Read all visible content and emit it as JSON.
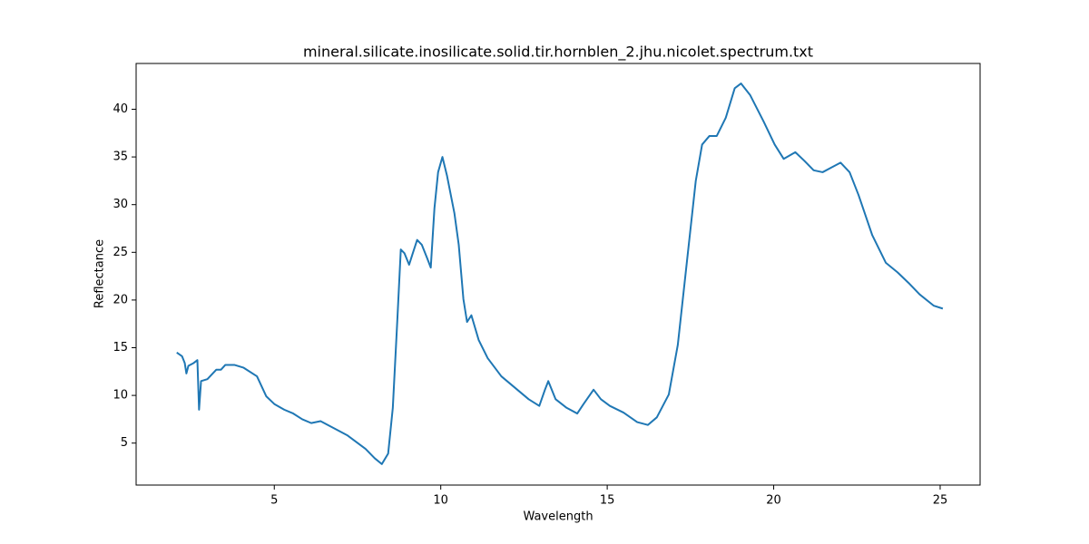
{
  "chart_data": {
    "type": "line",
    "title": "mineral.silicate.inosilicate.solid.tir.hornblen_2.jhu.nicolet.spectrum.txt",
    "x_label": "Wavelength",
    "y_label": "Reflectance",
    "color": "#1f77b4",
    "x": [
      2.07,
      2.23,
      2.31,
      2.36,
      2.42,
      2.58,
      2.69,
      2.74,
      2.8,
      2.99,
      3.26,
      3.4,
      3.53,
      3.8,
      4.08,
      4.48,
      4.76,
      5.0,
      5.3,
      5.57,
      5.84,
      6.11,
      6.39,
      6.66,
      7.2,
      7.74,
      8.02,
      8.23,
      8.42,
      8.56,
      8.7,
      8.8,
      8.91,
      9.05,
      9.16,
      9.29,
      9.43,
      9.59,
      9.7,
      9.81,
      9.92,
      10.05,
      10.19,
      10.41,
      10.54,
      10.68,
      10.79,
      10.92,
      11.14,
      11.41,
      11.82,
      12.23,
      12.64,
      12.96,
      13.13,
      13.23,
      13.45,
      13.78,
      14.1,
      14.29,
      14.59,
      14.81,
      15.08,
      15.49,
      15.9,
      16.22,
      16.49,
      16.85,
      17.12,
      17.39,
      17.66,
      17.85,
      18.07,
      18.29,
      18.56,
      18.83,
      19.02,
      19.29,
      19.7,
      20.03,
      20.3,
      20.65,
      20.92,
      21.2,
      21.47,
      21.74,
      22.01,
      22.28,
      22.55,
      22.96,
      23.37,
      23.72,
      24.05,
      24.38,
      24.81,
      25.08
    ],
    "values": [
      14.5,
      14.1,
      13.4,
      12.3,
      13.1,
      13.4,
      13.7,
      8.5,
      11.5,
      11.7,
      12.7,
      12.7,
      13.2,
      13.2,
      12.9,
      12.0,
      9.9,
      9.1,
      8.5,
      8.1,
      7.5,
      7.1,
      7.3,
      6.8,
      5.8,
      4.4,
      3.4,
      2.8,
      3.9,
      8.7,
      18.2,
      25.3,
      24.9,
      23.7,
      24.9,
      26.3,
      25.8,
      24.4,
      23.4,
      29.6,
      33.4,
      35.0,
      33.0,
      29.1,
      25.8,
      20.1,
      17.7,
      18.4,
      15.8,
      13.9,
      12.0,
      10.8,
      9.6,
      8.9,
      10.6,
      11.5,
      9.6,
      8.7,
      8.1,
      9.1,
      10.6,
      9.6,
      8.9,
      8.2,
      7.2,
      6.9,
      7.7,
      10.1,
      15.3,
      23.9,
      32.5,
      36.3,
      37.2,
      37.2,
      39.1,
      42.2,
      42.7,
      41.5,
      38.7,
      36.3,
      34.8,
      35.5,
      34.6,
      33.6,
      33.4,
      33.9,
      34.4,
      33.4,
      31.0,
      26.8,
      23.9,
      22.9,
      21.8,
      20.6,
      19.4,
      19.1
    ],
    "xlim": [
      0.85,
      26.2
    ],
    "xticks": [
      5,
      10,
      15,
      20,
      25
    ],
    "ylim": [
      0.6,
      44.8
    ],
    "yticks": [
      5,
      10,
      15,
      20,
      25,
      30,
      35,
      40
    ]
  }
}
